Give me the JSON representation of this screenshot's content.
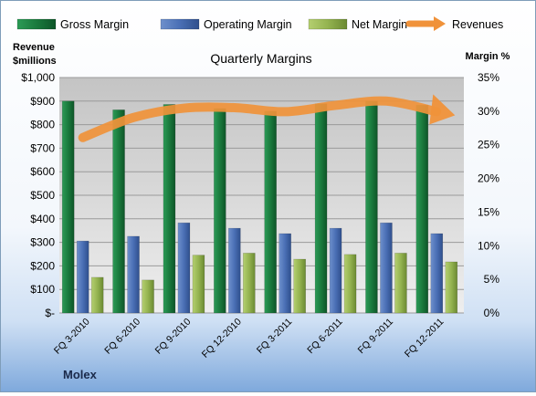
{
  "source_label": "Molex",
  "chart_data": {
    "type": "bar",
    "title": "Quarterly Margins",
    "categories": [
      "FQ 3-2010",
      "FQ 6-2010",
      "FQ 9-2010",
      "FQ 12-2010",
      "FQ 3-2011",
      "FQ 6-2011",
      "FQ 9-2011",
      "FQ 12-2011"
    ],
    "y_left": {
      "label_lines": [
        "Revenue",
        "$millions"
      ],
      "range": [
        0,
        1000
      ],
      "ticks": [
        "$-",
        "$100",
        "$200",
        "$300",
        "$400",
        "$500",
        "$600",
        "$700",
        "$800",
        "$900",
        "$1,000"
      ]
    },
    "y_right": {
      "label": "Margin %",
      "range": [
        0,
        35
      ],
      "ticks": [
        "0%",
        "5%",
        "10%",
        "15%",
        "20%",
        "25%",
        "30%",
        "35%"
      ]
    },
    "legend_position": "top",
    "grid": true,
    "series": [
      {
        "name": "Gross Margin",
        "type": "bar",
        "axis": "right",
        "color": "#1f7a3e",
        "values": [
          31.5,
          30.2,
          31.0,
          30.4,
          30.0,
          31.1,
          31.5,
          30.9
        ]
      },
      {
        "name": "Operating Margin",
        "type": "bar",
        "axis": "right",
        "color": "#4a6fb5",
        "values": [
          10.7,
          11.4,
          13.4,
          12.6,
          11.8,
          12.6,
          13.4,
          11.8
        ]
      },
      {
        "name": "Net Margin",
        "type": "bar",
        "axis": "right",
        "color": "#94b350",
        "values": [
          5.3,
          4.9,
          8.6,
          8.9,
          8.0,
          8.7,
          8.9,
          7.6
        ]
      },
      {
        "name": "Revenues",
        "type": "line",
        "axis": "left",
        "color": "#f0923a",
        "values": [
          745,
          830,
          870,
          872,
          855,
          882,
          900,
          855
        ]
      }
    ]
  }
}
